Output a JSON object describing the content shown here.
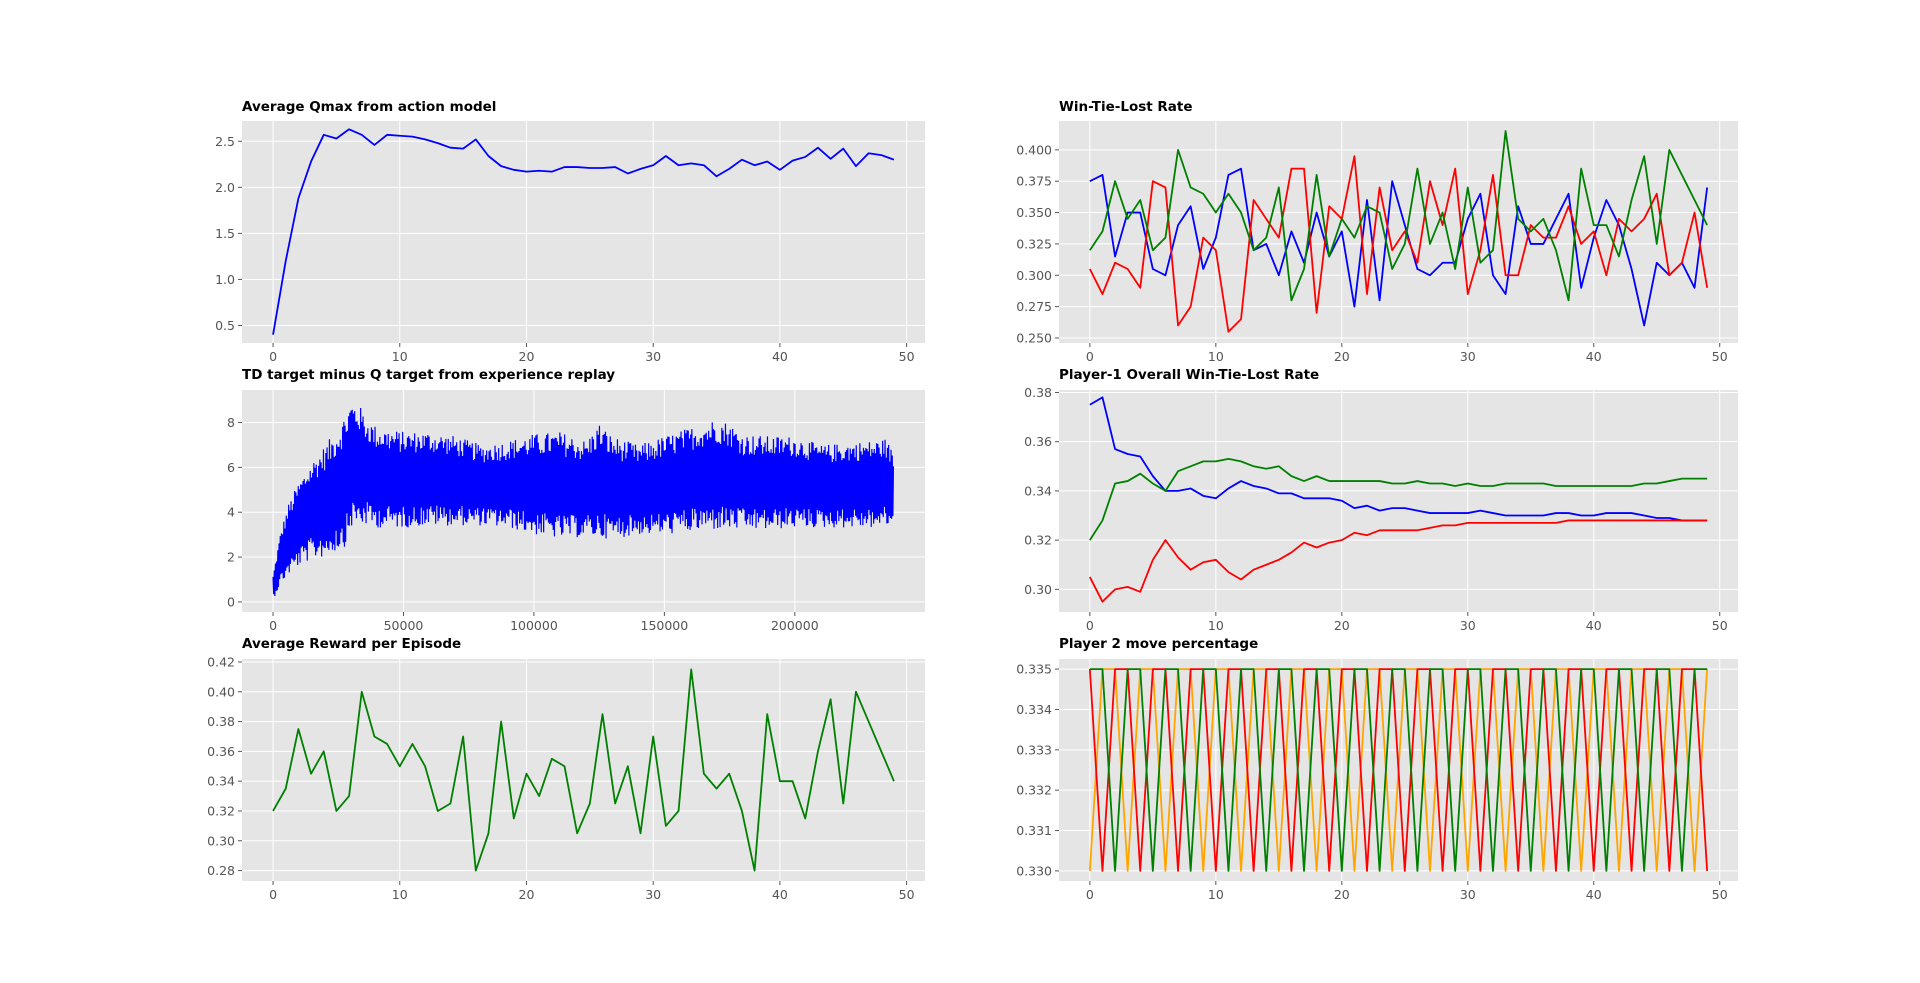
{
  "colors": {
    "blue": "#0000ff",
    "green": "#008000",
    "red": "#ff0000",
    "orange": "#ffa500",
    "axes_background": "#e5e5e5",
    "grid": "#ffffff"
  },
  "chart_data": [
    {
      "id": "qmax",
      "type": "line",
      "title": "Average Qmax from action model",
      "xlim": [
        -2.45,
        51.45
      ],
      "ylim": [
        0.31,
        2.72
      ],
      "xticks": [
        0,
        10,
        20,
        30,
        40,
        50
      ],
      "yticks": [
        0.5,
        1.0,
        1.5,
        2.0,
        2.5
      ],
      "ytick_decimals": 1,
      "grid": true,
      "series": [
        {
          "color": "#0000ff",
          "values": [
            0.4,
            1.2,
            1.88,
            2.28,
            2.57,
            2.53,
            2.63,
            2.57,
            2.46,
            2.57,
            2.56,
            2.55,
            2.52,
            2.48,
            2.43,
            2.42,
            2.52,
            2.34,
            2.23,
            2.19,
            2.17,
            2.18,
            2.17,
            2.22,
            2.22,
            2.21,
            2.21,
            2.22,
            2.15,
            2.2,
            2.24,
            2.34,
            2.24,
            2.26,
            2.24,
            2.12,
            2.2,
            2.3,
            2.24,
            2.28,
            2.19,
            2.29,
            2.33,
            2.43,
            2.31,
            2.42,
            2.23,
            2.37,
            2.35,
            2.3
          ]
        }
      ]
    },
    {
      "id": "win-tie-lost",
      "type": "line",
      "title": "Win-Tie-Lost Rate",
      "xlim": [
        -2.45,
        51.45
      ],
      "ylim": [
        0.246,
        0.423
      ],
      "xticks": [
        0,
        10,
        20,
        30,
        40,
        50
      ],
      "yticks": [
        0.25,
        0.275,
        0.3,
        0.325,
        0.35,
        0.375,
        0.4
      ],
      "ytick_decimals": 3,
      "grid": true,
      "series": [
        {
          "color": "#0000ff",
          "values": [
            0.375,
            0.38,
            0.315,
            0.35,
            0.35,
            0.305,
            0.3,
            0.34,
            0.355,
            0.305,
            0.33,
            0.38,
            0.385,
            0.32,
            0.325,
            0.3,
            0.335,
            0.31,
            0.35,
            0.315,
            0.335,
            0.275,
            0.36,
            0.28,
            0.375,
            0.34,
            0.305,
            0.3,
            0.31,
            0.31,
            0.345,
            0.365,
            0.3,
            0.285,
            0.355,
            0.325,
            0.325,
            0.345,
            0.365,
            0.29,
            0.33,
            0.36,
            0.34,
            0.305,
            0.26,
            0.31,
            0.3,
            0.31,
            0.29,
            0.37
          ]
        },
        {
          "color": "#ff0000",
          "values": [
            0.305,
            0.285,
            0.31,
            0.305,
            0.29,
            0.375,
            0.37,
            0.26,
            0.275,
            0.33,
            0.32,
            0.255,
            0.265,
            0.36,
            0.345,
            0.33,
            0.385,
            0.385,
            0.27,
            0.355,
            0.345,
            0.395,
            0.285,
            0.37,
            0.32,
            0.335,
            0.31,
            0.375,
            0.34,
            0.385,
            0.285,
            0.32,
            0.38,
            0.3,
            0.3,
            0.34,
            0.33,
            0.33,
            0.355,
            0.325,
            0.335,
            0.3,
            0.345,
            0.335,
            0.345,
            0.365,
            0.3,
            0.31,
            0.35,
            0.29
          ]
        },
        {
          "color": "#008000",
          "values": [
            0.32,
            0.335,
            0.375,
            0.345,
            0.36,
            0.32,
            0.33,
            0.4,
            0.37,
            0.365,
            0.35,
            0.365,
            0.35,
            0.32,
            0.33,
            0.37,
            0.28,
            0.305,
            0.38,
            0.315,
            0.345,
            0.33,
            0.355,
            0.35,
            0.305,
            0.325,
            0.385,
            0.325,
            0.35,
            0.305,
            0.37,
            0.31,
            0.32,
            0.415,
            0.345,
            0.335,
            0.345,
            0.32,
            0.28,
            0.385,
            0.34,
            0.34,
            0.315,
            0.36,
            0.395,
            0.325,
            0.4,
            0.38,
            0.36,
            0.34
          ]
        }
      ]
    },
    {
      "id": "td-target",
      "type": "line",
      "title": "TD target minus Q target from experience replay",
      "xlim": [
        -11900,
        249900
      ],
      "ylim": [
        -0.45,
        9.45
      ],
      "xticks": [
        0,
        50000,
        100000,
        150000,
        200000
      ],
      "yticks": [
        0,
        2,
        4,
        6,
        8
      ],
      "ytick_decimals": 0,
      "grid": true,
      "x_max": 238000,
      "series": [
        {
          "color": "#0000ff",
          "upper_envelope": [
            [
              0,
              1.2
            ],
            [
              3000,
              3.2
            ],
            [
              6000,
              4.4
            ],
            [
              10000,
              5.4
            ],
            [
              15000,
              6.3
            ],
            [
              20000,
              7.0
            ],
            [
              25000,
              7.8
            ],
            [
              28000,
              8.5
            ],
            [
              30000,
              9.0
            ],
            [
              33000,
              8.8
            ],
            [
              36000,
              8.2
            ],
            [
              40000,
              7.8
            ],
            [
              50000,
              7.6
            ],
            [
              60000,
              7.6
            ],
            [
              70000,
              7.4
            ],
            [
              80000,
              7.0
            ],
            [
              90000,
              7.2
            ],
            [
              100000,
              7.5
            ],
            [
              110000,
              7.6
            ],
            [
              120000,
              7.2
            ],
            [
              125000,
              8.0
            ],
            [
              130000,
              7.4
            ],
            [
              140000,
              7.0
            ],
            [
              150000,
              7.4
            ],
            [
              160000,
              7.8
            ],
            [
              170000,
              8.2
            ],
            [
              175000,
              8.0
            ],
            [
              180000,
              7.5
            ],
            [
              190000,
              7.4
            ],
            [
              200000,
              7.4
            ],
            [
              210000,
              7.0
            ],
            [
              220000,
              7.1
            ],
            [
              230000,
              7.2
            ],
            [
              235000,
              7.3
            ],
            [
              238000,
              6.6
            ]
          ],
          "lower_envelope": [
            [
              0,
              0.1
            ],
            [
              3000,
              0.8
            ],
            [
              6000,
              1.2
            ],
            [
              10000,
              1.6
            ],
            [
              15000,
              1.9
            ],
            [
              20000,
              2.0
            ],
            [
              25000,
              2.3
            ],
            [
              28000,
              2.5
            ],
            [
              30000,
              3.3
            ],
            [
              35000,
              3.4
            ],
            [
              40000,
              3.3
            ],
            [
              50000,
              3.3
            ],
            [
              60000,
              3.4
            ],
            [
              70000,
              3.4
            ],
            [
              80000,
              3.4
            ],
            [
              90000,
              3.3
            ],
            [
              100000,
              3.0
            ],
            [
              110000,
              2.8
            ],
            [
              120000,
              2.9
            ],
            [
              130000,
              2.8
            ],
            [
              140000,
              3.0
            ],
            [
              150000,
              3.0
            ],
            [
              160000,
              3.1
            ],
            [
              170000,
              3.2
            ],
            [
              180000,
              3.2
            ],
            [
              190000,
              3.2
            ],
            [
              200000,
              3.3
            ],
            [
              210000,
              3.3
            ],
            [
              220000,
              3.3
            ],
            [
              230000,
              3.3
            ],
            [
              238000,
              3.4
            ]
          ]
        }
      ]
    },
    {
      "id": "player1-overall",
      "type": "line",
      "title": "Player-1 Overall Win-Tie-Lost Rate",
      "xlim": [
        -2.45,
        51.45
      ],
      "ylim": [
        0.2908,
        0.381
      ],
      "xticks": [
        0,
        10,
        20,
        30,
        40,
        50
      ],
      "yticks": [
        0.3,
        0.32,
        0.34,
        0.36,
        0.38
      ],
      "ytick_decimals": 2,
      "grid": true,
      "series": [
        {
          "color": "#0000ff",
          "values": [
            0.375,
            0.378,
            0.357,
            0.355,
            0.354,
            0.346,
            0.34,
            0.34,
            0.341,
            0.338,
            0.337,
            0.341,
            0.344,
            0.342,
            0.341,
            0.339,
            0.339,
            0.337,
            0.337,
            0.337,
            0.336,
            0.333,
            0.334,
            0.332,
            0.333,
            0.333,
            0.332,
            0.331,
            0.331,
            0.331,
            0.331,
            0.332,
            0.331,
            0.33,
            0.33,
            0.33,
            0.33,
            0.331,
            0.331,
            0.33,
            0.33,
            0.331,
            0.331,
            0.331,
            0.33,
            0.329,
            0.329,
            0.328,
            0.328,
            0.328
          ]
        },
        {
          "color": "#008000",
          "values": [
            0.32,
            0.328,
            0.343,
            0.344,
            0.347,
            0.343,
            0.34,
            0.348,
            0.35,
            0.352,
            0.352,
            0.353,
            0.352,
            0.35,
            0.349,
            0.35,
            0.346,
            0.344,
            0.346,
            0.344,
            0.344,
            0.344,
            0.344,
            0.344,
            0.343,
            0.343,
            0.344,
            0.343,
            0.343,
            0.342,
            0.343,
            0.342,
            0.342,
            0.343,
            0.343,
            0.343,
            0.343,
            0.342,
            0.342,
            0.342,
            0.342,
            0.342,
            0.342,
            0.342,
            0.343,
            0.343,
            0.344,
            0.345,
            0.345,
            0.345
          ]
        },
        {
          "color": "#ff0000",
          "values": [
            0.305,
            0.295,
            0.3,
            0.301,
            0.299,
            0.312,
            0.32,
            0.313,
            0.308,
            0.311,
            0.312,
            0.307,
            0.304,
            0.308,
            0.31,
            0.312,
            0.315,
            0.319,
            0.317,
            0.319,
            0.32,
            0.323,
            0.322,
            0.324,
            0.324,
            0.324,
            0.324,
            0.325,
            0.326,
            0.326,
            0.327,
            0.327,
            0.327,
            0.327,
            0.327,
            0.327,
            0.327,
            0.327,
            0.328,
            0.328,
            0.328,
            0.328,
            0.328,
            0.328,
            0.328,
            0.328,
            0.328,
            0.328,
            0.328,
            0.328
          ]
        }
      ]
    },
    {
      "id": "avg-reward",
      "type": "line",
      "title": "Average Reward per Episode",
      "xlim": [
        -2.45,
        51.45
      ],
      "ylim": [
        0.273,
        0.422
      ],
      "xticks": [
        0,
        10,
        20,
        30,
        40,
        50
      ],
      "yticks": [
        0.28,
        0.3,
        0.32,
        0.34,
        0.36,
        0.38,
        0.4,
        0.42
      ],
      "ytick_decimals": 2,
      "grid": true,
      "series": [
        {
          "color": "#008000",
          "values": [
            0.32,
            0.335,
            0.375,
            0.345,
            0.36,
            0.32,
            0.33,
            0.4,
            0.37,
            0.365,
            0.35,
            0.365,
            0.35,
            0.32,
            0.325,
            0.37,
            0.28,
            0.305,
            0.38,
            0.315,
            0.345,
            0.33,
            0.355,
            0.35,
            0.305,
            0.325,
            0.385,
            0.325,
            0.35,
            0.305,
            0.37,
            0.31,
            0.32,
            0.415,
            0.345,
            0.335,
            0.345,
            0.32,
            0.28,
            0.385,
            0.34,
            0.34,
            0.315,
            0.36,
            0.395,
            0.325,
            0.4,
            0.38,
            0.36,
            0.34
          ]
        }
      ]
    },
    {
      "id": "player2-move",
      "type": "line",
      "title": "Player 2 move percentage",
      "xlim": [
        -2.45,
        51.45
      ],
      "ylim": [
        0.32975,
        0.33525
      ],
      "xticks": [
        0,
        10,
        20,
        30,
        40,
        50
      ],
      "yticks": [
        0.33,
        0.331,
        0.332,
        0.333,
        0.334,
        0.335
      ],
      "ytick_decimals": 3,
      "grid": true,
      "series": [
        {
          "color": "#ffa500",
          "values": [
            0.33,
            0.335,
            0.335,
            0.33,
            0.335,
            0.335,
            0.33,
            0.335,
            0.335,
            0.33,
            0.335,
            0.335,
            0.33,
            0.335,
            0.335,
            0.33,
            0.335,
            0.335,
            0.33,
            0.335,
            0.335,
            0.33,
            0.335,
            0.335,
            0.33,
            0.335,
            0.335,
            0.33,
            0.335,
            0.335,
            0.33,
            0.335,
            0.335,
            0.33,
            0.335,
            0.335,
            0.33,
            0.335,
            0.335,
            0.33,
            0.335,
            0.335,
            0.33,
            0.335,
            0.335,
            0.33,
            0.335,
            0.335,
            0.33,
            0.335
          ]
        },
        {
          "color": "#ff0000",
          "values": [
            0.335,
            0.33,
            0.335,
            0.335,
            0.33,
            0.335,
            0.335,
            0.33,
            0.335,
            0.335,
            0.33,
            0.335,
            0.335,
            0.33,
            0.335,
            0.335,
            0.33,
            0.335,
            0.335,
            0.33,
            0.335,
            0.335,
            0.33,
            0.335,
            0.335,
            0.33,
            0.335,
            0.335,
            0.33,
            0.335,
            0.335,
            0.33,
            0.335,
            0.335,
            0.33,
            0.335,
            0.335,
            0.33,
            0.335,
            0.335,
            0.33,
            0.335,
            0.335,
            0.33,
            0.335,
            0.335,
            0.33,
            0.335,
            0.335,
            0.33
          ]
        },
        {
          "color": "#008000",
          "values": [
            0.335,
            0.335,
            0.33,
            0.335,
            0.335,
            0.33,
            0.335,
            0.335,
            0.33,
            0.335,
            0.335,
            0.33,
            0.335,
            0.335,
            0.33,
            0.335,
            0.335,
            0.33,
            0.335,
            0.335,
            0.33,
            0.335,
            0.335,
            0.33,
            0.335,
            0.335,
            0.33,
            0.335,
            0.335,
            0.33,
            0.335,
            0.335,
            0.33,
            0.335,
            0.335,
            0.33,
            0.335,
            0.335,
            0.33,
            0.335,
            0.335,
            0.33,
            0.335,
            0.335,
            0.33,
            0.335,
            0.335,
            0.33,
            0.335,
            0.335
          ]
        }
      ]
    }
  ]
}
